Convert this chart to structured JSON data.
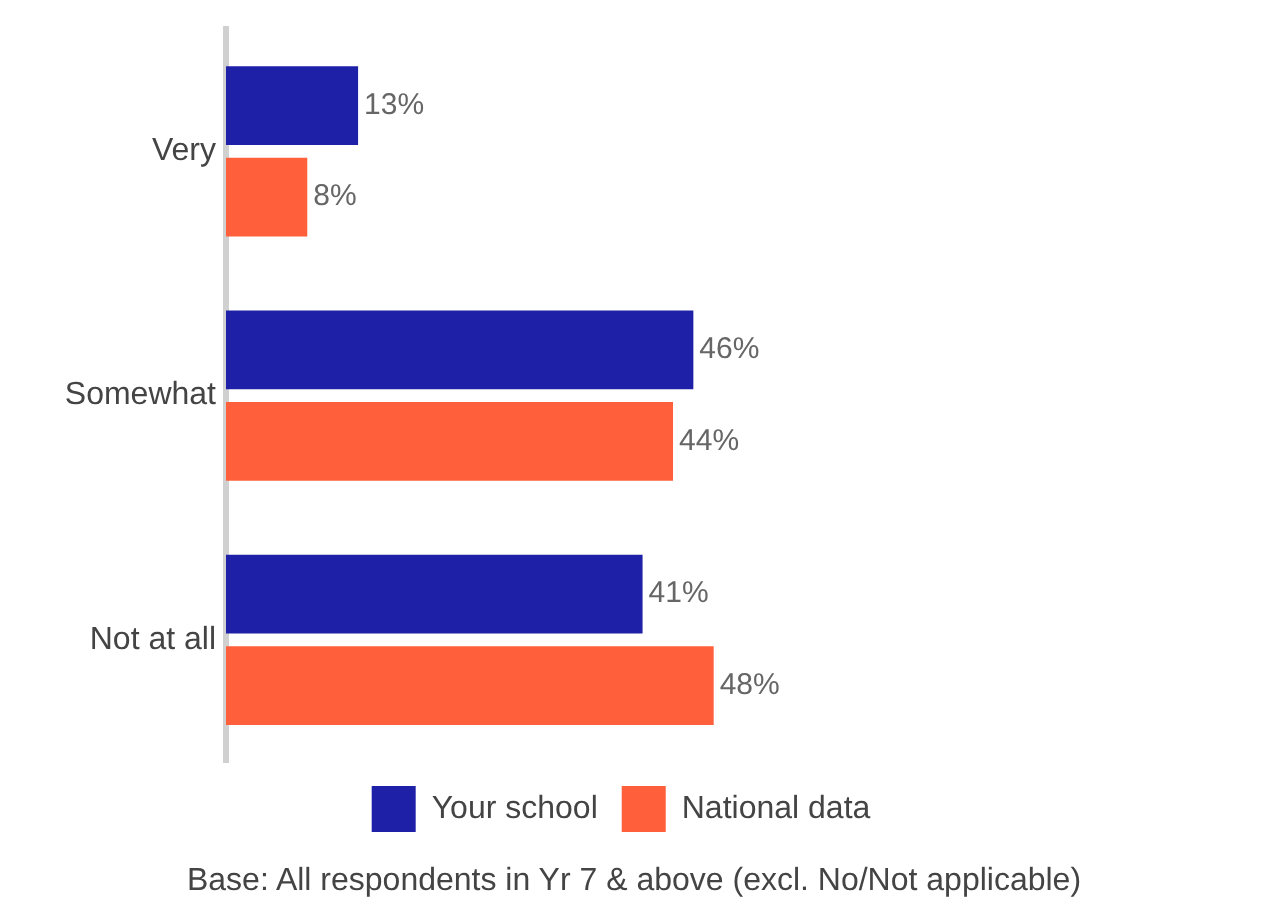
{
  "chart_data": {
    "type": "bar",
    "orientation": "horizontal",
    "categories": [
      "Very",
      "Somewhat",
      "Not at all"
    ],
    "series": [
      {
        "name": "Your school",
        "color": "#1f20a8",
        "values": [
          13,
          46,
          41
        ],
        "value_labels": [
          "13%",
          "46%",
          "41%"
        ]
      },
      {
        "name": "National data",
        "color": "#ff5f3a",
        "values": [
          8,
          44,
          48
        ],
        "value_labels": [
          "8%",
          "44%",
          "48%"
        ]
      }
    ],
    "tick_labels": "y",
    "legend": "bottom",
    "grid": false,
    "annotations": [
      "Base: All respondents in Yr 7 & above (excl. No/Not applicable)"
    ]
  }
}
